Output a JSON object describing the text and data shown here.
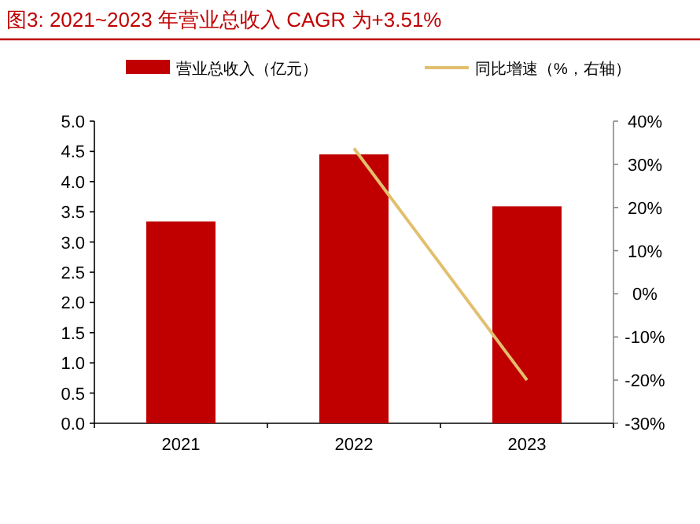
{
  "chart_data": {
    "type": "bar",
    "title": "图3:  2021~2023 年营业总收入 CAGR 为+3.51%",
    "categories": [
      "2021",
      "2022",
      "2023"
    ],
    "series": [
      {
        "name": "营业总收入（亿元）",
        "color": "#c00000",
        "values": [
          3.34,
          4.45,
          3.59
        ]
      },
      {
        "name": "同比增速（%，右轴）",
        "type": "line",
        "axis": "y2",
        "color": "#e2bf6e",
        "values": [
          null,
          33.7,
          -20
        ]
      }
    ],
    "ylim": [
      0,
      5
    ],
    "yticks": [
      {
        "value": 0,
        "label": "0.0"
      },
      {
        "value": 0.5,
        "label": "0.5"
      },
      {
        "value": 1,
        "label": "1.0"
      },
      {
        "value": 1.5,
        "label": "1.5"
      },
      {
        "value": 2,
        "label": "2.0"
      },
      {
        "value": 2.5,
        "label": "2.5"
      },
      {
        "value": 3,
        "label": "3.0"
      },
      {
        "value": 3.5,
        "label": "3.5"
      },
      {
        "value": 4,
        "label": "4.0"
      },
      {
        "value": 4.5,
        "label": "4.5"
      },
      {
        "value": 5,
        "label": "5.0"
      }
    ],
    "y2lim": [
      -30,
      40
    ],
    "y2ticks": [
      {
        "value": -30,
        "label": "-30%"
      },
      {
        "value": -20,
        "label": "-20%"
      },
      {
        "value": -10,
        "label": "-10%"
      },
      {
        "value": 0,
        "label": "0%"
      },
      {
        "value": 10,
        "label": "10%"
      },
      {
        "value": 20,
        "label": "20%"
      },
      {
        "value": 30,
        "label": "30%"
      },
      {
        "value": 40,
        "label": "40%"
      }
    ],
    "grid": false,
    "legend": "top"
  }
}
